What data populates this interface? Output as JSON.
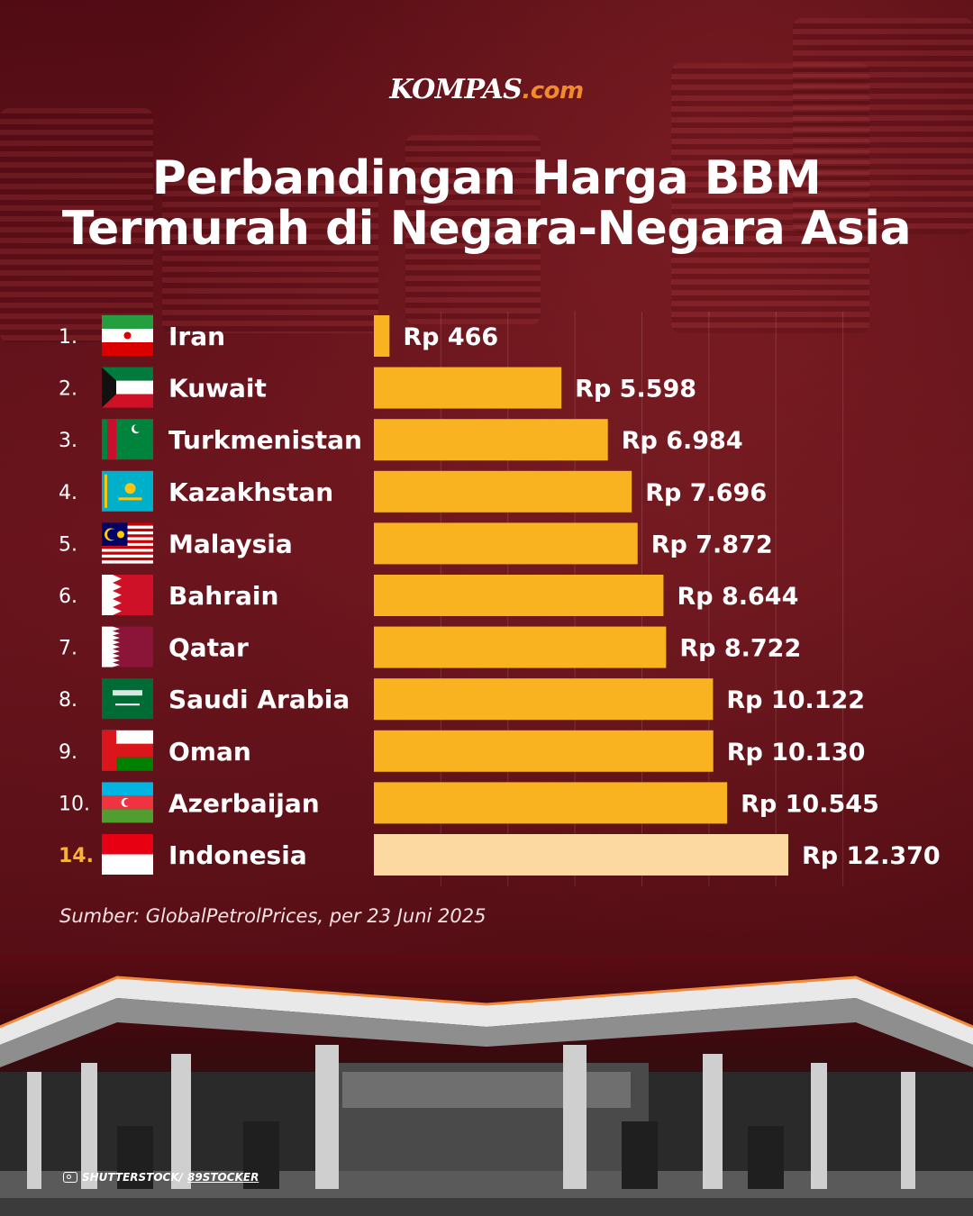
{
  "brand": {
    "name": "KOMPAS",
    "suffix": ".com"
  },
  "title_lines": [
    "Perbandingan Harga BBM",
    "Termurah di Negara-Negara Asia"
  ],
  "source": "Sumber: GlobalPetrolPrices, per 23 Juni 2025",
  "photo_credit": {
    "prefix": "SHUTTERSTOCK/",
    "handle": "89STOCKER"
  },
  "colors": {
    "bar": "#f9b321",
    "bar_highlight": "#fcd9a0",
    "rank_highlight": "#f9b233",
    "background": "#5a0b13"
  },
  "chart_data": {
    "type": "bar",
    "orientation": "horizontal",
    "title": "Perbandingan Harga BBM Termurah di Negara-Negara Asia",
    "unit": "Rp",
    "categories": [
      "Iran",
      "Kuwait",
      "Turkmenistan",
      "Kazakhstan",
      "Malaysia",
      "Bahrain",
      "Qatar",
      "Saudi Arabia",
      "Oman",
      "Azerbaijan",
      "Indonesia"
    ],
    "ranks": [
      "1.",
      "2.",
      "3.",
      "4.",
      "5.",
      "6.",
      "7.",
      "8.",
      "9.",
      "10.",
      "14."
    ],
    "values": [
      466,
      5598,
      6984,
      7696,
      7872,
      8644,
      8722,
      10122,
      10130,
      10545,
      12370
    ],
    "value_labels": [
      "Rp 466",
      "Rp 5.598",
      "Rp 6.984",
      "Rp 7.696",
      "Rp 7.872",
      "Rp 8.644",
      "Rp 8.722",
      "Rp 10.122",
      "Rp 10.130",
      "Rp 10.545",
      "Rp 12.370"
    ],
    "flags": [
      "iran-flag",
      "kuwait-flag",
      "turkmenistan-flag",
      "kazakhstan-flag",
      "malaysia-flag",
      "bahrain-flag",
      "qatar-flag",
      "saudi-arabia-flag",
      "oman-flag",
      "azerbaijan-flag",
      "indonesia-flag"
    ],
    "highlight_index": 10,
    "xlim": [
      0,
      14000
    ],
    "grid": true
  }
}
